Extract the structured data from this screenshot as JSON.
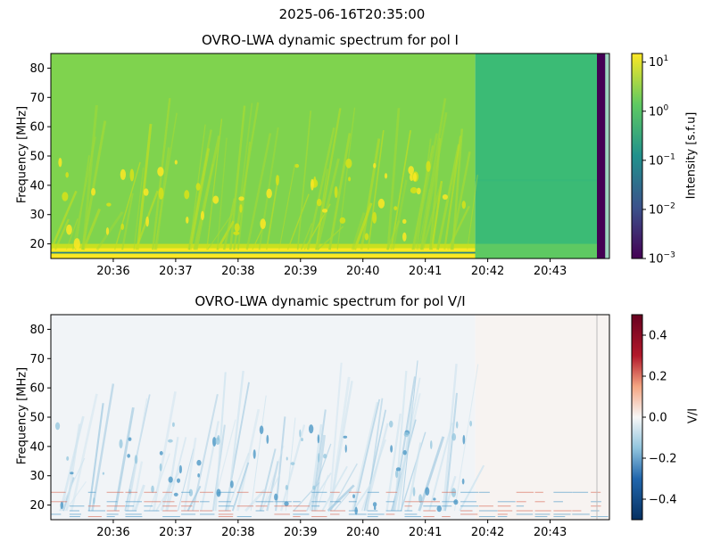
{
  "figure": {
    "suptitle": "2025-06-16T20:35:00"
  },
  "chart_data": [
    {
      "type": "heatmap",
      "title": "OVRO-LWA dynamic spectrum for pol I",
      "xlabel": "",
      "ylabel": "Frequency [MHz]",
      "xticks": [
        "20:36",
        "20:37",
        "20:38",
        "20:39",
        "20:40",
        "20:41",
        "20:42",
        "20:43"
      ],
      "xlim": [
        "20:35:00",
        "20:43:57"
      ],
      "ylim": [
        15,
        85
      ],
      "yticks": [
        20,
        30,
        40,
        50,
        60,
        70,
        80
      ],
      "colormap": "viridis",
      "colorbar": {
        "label": "Intensity [s.f.u]",
        "scale": "log",
        "range": [
          0.001,
          15
        ],
        "ticks": [
          "10^{-3}",
          "10^{-2}",
          "10^{-1}",
          "10^{0}",
          "10^{1}"
        ]
      },
      "features": {
        "data_end_time": "20:41:48",
        "dark_band_time": [
          "20:43:45",
          "20:43:53"
        ]
      }
    },
    {
      "type": "heatmap",
      "title": "OVRO-LWA dynamic spectrum for pol V/I",
      "xlabel": "",
      "ylabel": "Frequency [MHz]",
      "xticks": [
        "20:36",
        "20:37",
        "20:38",
        "20:39",
        "20:40",
        "20:41",
        "20:42",
        "20:43"
      ],
      "xlim": [
        "20:35:00",
        "20:43:57"
      ],
      "ylim": [
        15,
        85
      ],
      "yticks": [
        20,
        30,
        40,
        50,
        60,
        70,
        80
      ],
      "colormap": "RdBu_r",
      "colorbar": {
        "label": "V/I",
        "scale": "linear",
        "range": [
          -0.5,
          0.5
        ],
        "ticks": [
          "−0.4",
          "−0.2",
          "0.0",
          "0.2",
          "0.4"
        ]
      }
    }
  ]
}
